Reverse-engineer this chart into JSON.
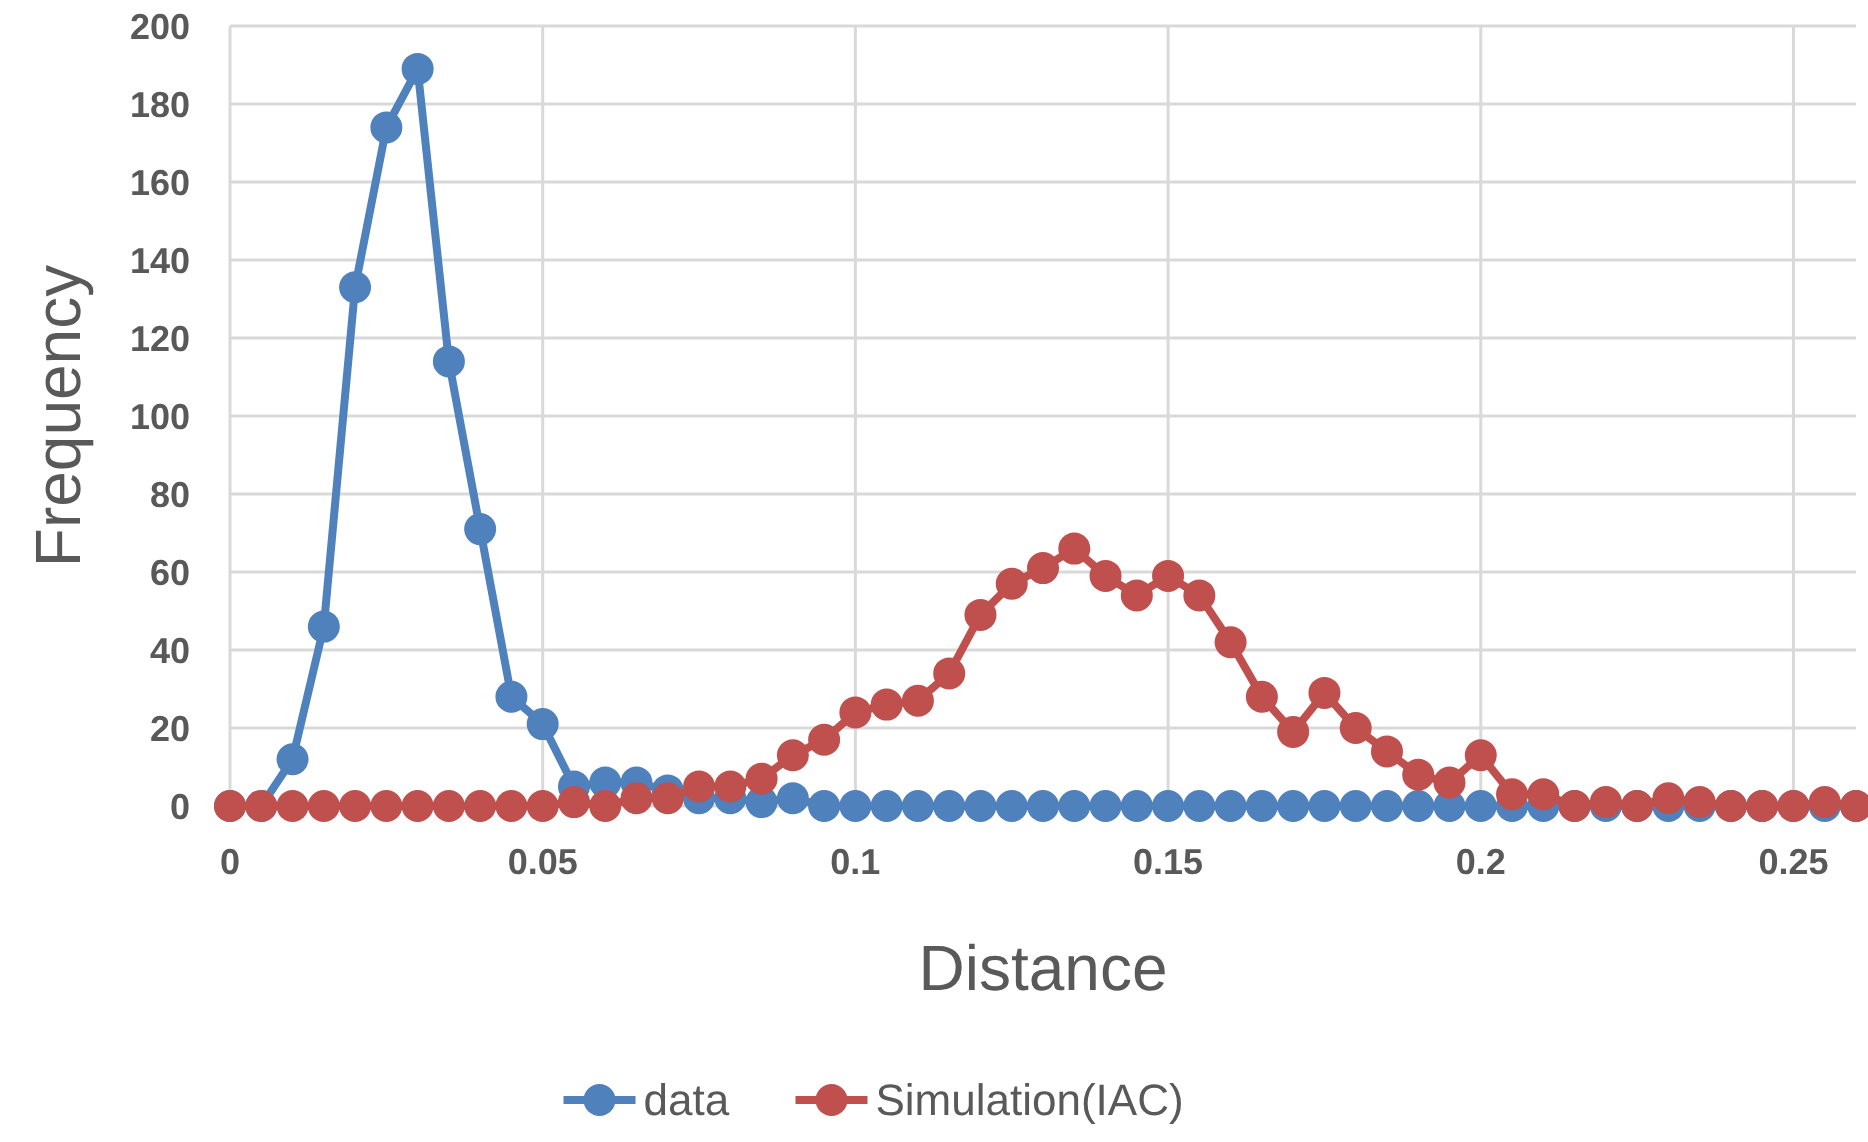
{
  "chart_data": {
    "type": "line",
    "xlabel": "Distance",
    "ylabel": "Frequency",
    "x": [
      0,
      0.005,
      0.01,
      0.015,
      0.02,
      0.025,
      0.03,
      0.035,
      0.04,
      0.045,
      0.05,
      0.055,
      0.06,
      0.065,
      0.07,
      0.075,
      0.08,
      0.085,
      0.09,
      0.095,
      0.1,
      0.105,
      0.11,
      0.115,
      0.12,
      0.125,
      0.13,
      0.135,
      0.14,
      0.145,
      0.15,
      0.155,
      0.16,
      0.165,
      0.17,
      0.175,
      0.18,
      0.185,
      0.19,
      0.195,
      0.2,
      0.205,
      0.21,
      0.215,
      0.22,
      0.225,
      0.23,
      0.235,
      0.24,
      0.245,
      0.25,
      0.255,
      0.26
    ],
    "series": [
      {
        "name": "data",
        "color": "#4f81bd",
        "values": [
          0,
          0,
          12,
          46,
          133,
          174,
          189,
          114,
          71,
          28,
          21,
          5,
          6,
          6,
          4,
          2,
          2,
          1,
          2,
          0,
          0,
          0,
          0,
          0,
          0,
          0,
          0,
          0,
          0,
          0,
          0,
          0,
          0,
          0,
          0,
          0,
          0,
          0,
          0,
          0,
          0,
          0,
          0,
          0,
          0,
          0,
          0,
          0,
          0,
          0,
          0,
          0,
          0
        ]
      },
      {
        "name": "Simulation(IAC)",
        "color": "#c0504d",
        "values": [
          0,
          0,
          0,
          0,
          0,
          0,
          0,
          0,
          0,
          0,
          0,
          1,
          0,
          2,
          2,
          5,
          5,
          7,
          13,
          17,
          24,
          26,
          27,
          34,
          49,
          57,
          61,
          66,
          59,
          54,
          59,
          54,
          42,
          28,
          19,
          29,
          20,
          14,
          8,
          6,
          13,
          3,
          3,
          0,
          1,
          0,
          2,
          1,
          0,
          0,
          0,
          1,
          0
        ]
      }
    ],
    "xlim": [
      0,
      0.26
    ],
    "xticks": [
      0,
      0.05,
      0.1,
      0.15,
      0.2,
      0.25
    ],
    "ylim": [
      0,
      200
    ],
    "yticks": [
      0,
      20,
      40,
      60,
      80,
      100,
      120,
      140,
      160,
      180,
      200
    ],
    "grid": true,
    "legend": "bottom",
    "marker": "circle",
    "line_style": "solid"
  }
}
